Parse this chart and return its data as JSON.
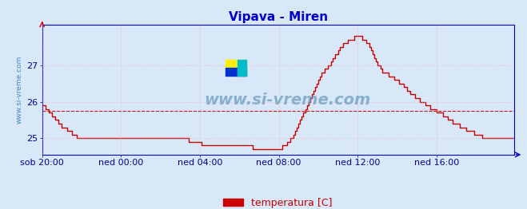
{
  "title": "Vipava - Miren",
  "title_color": "#0000cc",
  "title_fontsize": 11,
  "bg_color": "#d8e8f8",
  "plot_bg_color": "#d8e8f8",
  "grid_color": "#ffaaaa",
  "grid_style": ":",
  "line_color": "#cc0000",
  "line_width": 1.0,
  "avg_line_color": "#cc0000",
  "avg_line_style": "--",
  "avg_value": 25.75,
  "ylabel_text": "www.si-vreme.com",
  "ylabel_color": "#4488bb",
  "xlabel_labels": [
    "sob 20:00",
    "ned 00:00",
    "ned 04:00",
    "ned 08:00",
    "ned 12:00",
    "ned 16:00"
  ],
  "xlabel_color": "#000099",
  "xlabel_fontsize": 8,
  "ytick_values": [
    25,
    26,
    27
  ],
  "ytick_color": "#000099",
  "ytick_fontsize": 8,
  "ylim": [
    24.55,
    28.1
  ],
  "xlim": [
    0,
    287
  ],
  "legend_label": "temperatura [C]",
  "legend_color": "#cc0000",
  "watermark": "www.si-vreme.com",
  "x_ticks_pos": [
    0,
    48,
    96,
    144,
    192,
    240
  ],
  "spine_color": "#0000bb",
  "temperature_data": [
    25.9,
    25.9,
    25.8,
    25.8,
    25.7,
    25.7,
    25.6,
    25.6,
    25.5,
    25.5,
    25.4,
    25.4,
    25.3,
    25.3,
    25.3,
    25.2,
    25.2,
    25.2,
    25.1,
    25.1,
    25.1,
    25.0,
    25.0,
    25.0,
    25.0,
    25.0,
    25.0,
    25.0,
    25.0,
    25.0,
    25.0,
    25.0,
    25.0,
    25.0,
    25.0,
    25.0,
    25.0,
    25.0,
    25.0,
    25.0,
    25.0,
    25.0,
    25.0,
    25.0,
    25.0,
    25.0,
    25.0,
    25.0,
    25.0,
    25.0,
    25.0,
    25.0,
    25.0,
    25.0,
    25.0,
    25.0,
    25.0,
    25.0,
    25.0,
    25.0,
    25.0,
    25.0,
    25.0,
    25.0,
    25.0,
    25.0,
    25.0,
    25.0,
    25.0,
    25.0,
    25.0,
    25.0,
    25.0,
    25.0,
    25.0,
    25.0,
    25.0,
    25.0,
    25.0,
    25.0,
    25.0,
    25.0,
    25.0,
    25.0,
    25.0,
    25.0,
    25.0,
    25.0,
    25.0,
    24.9,
    24.9,
    24.9,
    24.9,
    24.9,
    24.9,
    24.9,
    24.9,
    24.8,
    24.8,
    24.8,
    24.8,
    24.8,
    24.8,
    24.8,
    24.8,
    24.8,
    24.8,
    24.8,
    24.8,
    24.8,
    24.8,
    24.8,
    24.8,
    24.8,
    24.8,
    24.8,
    24.8,
    24.8,
    24.8,
    24.8,
    24.8,
    24.8,
    24.8,
    24.8,
    24.8,
    24.8,
    24.8,
    24.8,
    24.7,
    24.7,
    24.7,
    24.7,
    24.7,
    24.7,
    24.7,
    24.7,
    24.7,
    24.7,
    24.7,
    24.7,
    24.7,
    24.7,
    24.7,
    24.7,
    24.7,
    24.7,
    24.8,
    24.8,
    24.8,
    24.9,
    24.9,
    25.0,
    25.0,
    25.1,
    25.2,
    25.3,
    25.4,
    25.5,
    25.6,
    25.7,
    25.8,
    25.9,
    26.0,
    26.1,
    26.2,
    26.3,
    26.4,
    26.5,
    26.6,
    26.7,
    26.8,
    26.8,
    26.9,
    26.9,
    27.0,
    27.0,
    27.1,
    27.2,
    27.3,
    27.3,
    27.4,
    27.5,
    27.5,
    27.6,
    27.6,
    27.6,
    27.7,
    27.7,
    27.7,
    27.7,
    27.8,
    27.8,
    27.8,
    27.8,
    27.8,
    27.7,
    27.7,
    27.6,
    27.6,
    27.5,
    27.4,
    27.3,
    27.2,
    27.1,
    27.0,
    27.0,
    26.9,
    26.8,
    26.8,
    26.8,
    26.8,
    26.7,
    26.7,
    26.7,
    26.6,
    26.6,
    26.6,
    26.5,
    26.5,
    26.5,
    26.4,
    26.4,
    26.3,
    26.3,
    26.2,
    26.2,
    26.2,
    26.1,
    26.1,
    26.1,
    26.0,
    26.0,
    26.0,
    25.9,
    25.9,
    25.9,
    25.8,
    25.8,
    25.8,
    25.8,
    25.7,
    25.7,
    25.7,
    25.7,
    25.6,
    25.6,
    25.6,
    25.5,
    25.5,
    25.5,
    25.4,
    25.4,
    25.4,
    25.4,
    25.3,
    25.3,
    25.3,
    25.3,
    25.2,
    25.2,
    25.2,
    25.2,
    25.2,
    25.1,
    25.1,
    25.1,
    25.1,
    25.1,
    25.0,
    25.0,
    25.0,
    25.0,
    25.0,
    25.0,
    25.0,
    25.0,
    25.0,
    25.0,
    25.0,
    25.0,
    25.0,
    25.0,
    25.0,
    25.0,
    25.0,
    25.0,
    25.0,
    25.0
  ]
}
